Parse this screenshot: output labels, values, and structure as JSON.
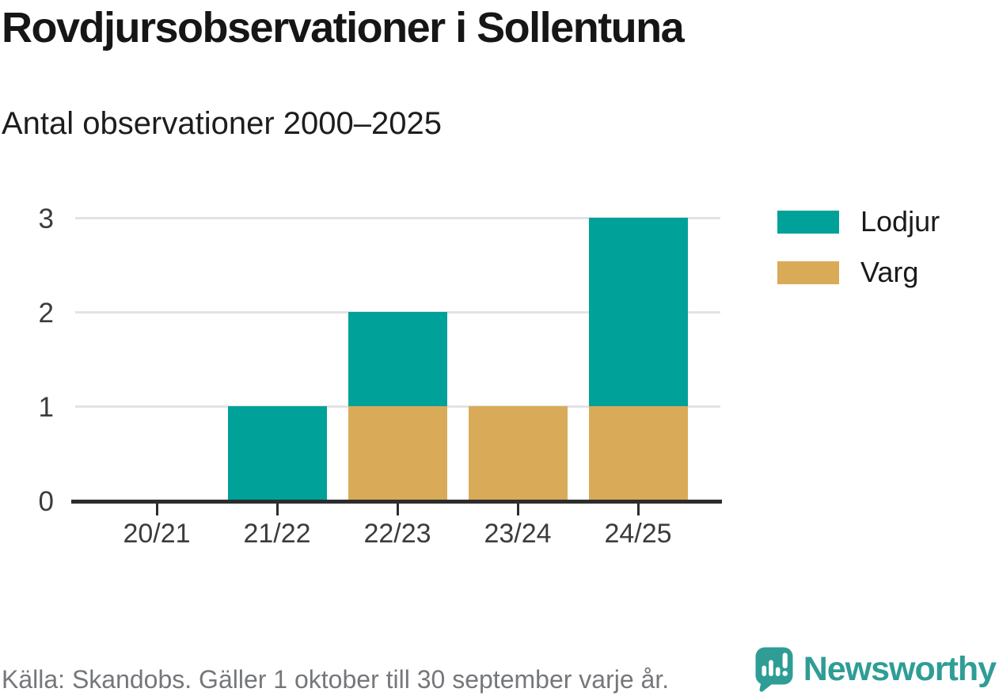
{
  "title": "Rovdjursobservationer i Sollentuna",
  "subtitle": "Antal observationer 2000–2025",
  "footer": {
    "source": "Källa: Skandobs. Gäller 1 oktober till 30 september varje år.",
    "brand": "Newsworthy"
  },
  "colors": {
    "lodjur": "#00a199",
    "varg": "#d9ab58",
    "grid": "#e3e3e3",
    "axis": "#2d2d2d",
    "tick_text": "#3c3c3c",
    "muted_text": "#75777a",
    "brand_teal": "#2f9d96"
  },
  "legend": {
    "items": [
      {
        "label": "Lodjur",
        "color": "#00a199"
      },
      {
        "label": "Varg",
        "color": "#d9ab58"
      }
    ]
  },
  "chart_data": {
    "type": "bar",
    "stacked": true,
    "title": "Rovdjursobservationer i Sollentuna",
    "subtitle": "Antal observationer 2000–2025",
    "categories": [
      "20/21",
      "21/22",
      "22/23",
      "23/24",
      "24/25"
    ],
    "series": [
      {
        "name": "Lodjur",
        "color": "#00a199",
        "values": [
          0,
          1,
          1,
          0,
          2
        ]
      },
      {
        "name": "Varg",
        "color": "#d9ab58",
        "values": [
          0,
          0,
          1,
          1,
          1
        ]
      }
    ],
    "stack_bottom_to_top": [
      "Varg",
      "Lodjur"
    ],
    "xlabel": "",
    "ylabel": "",
    "ylim": [
      0,
      3
    ],
    "yticks": [
      0,
      1,
      2,
      3
    ],
    "grid": true,
    "legend_position": "top-right"
  }
}
